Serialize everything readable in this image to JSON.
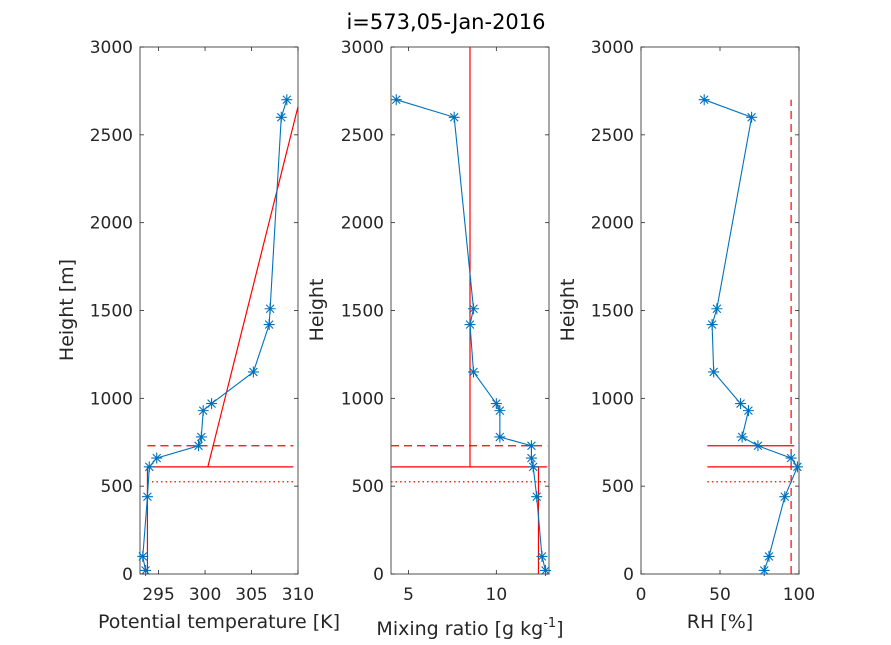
{
  "title": "i=573,05-Jan-2016",
  "colors": {
    "profile": "#0072BD",
    "reference": "#FF0000",
    "axis": "#262626"
  },
  "chart_data": [
    {
      "type": "line",
      "id": "theta",
      "xlabel": "Potential temperature [K]",
      "ylabel": "Height [m]",
      "xlim": [
        293,
        310
      ],
      "ylim": [
        0,
        3000
      ],
      "xticks": [
        295,
        300,
        305,
        310
      ],
      "yticks": [
        0,
        500,
        1000,
        1500,
        2000,
        2500,
        3000
      ],
      "series": [
        {
          "style": "line-star",
          "x": [
            293.6,
            293.3,
            293.8,
            294.0,
            294.8,
            299.3,
            299.6,
            299.8,
            300.7,
            305.2,
            306.9,
            307.0,
            308.2,
            308.8
          ],
          "y": [
            20,
            100,
            440,
            610,
            660,
            730,
            780,
            930,
            970,
            1150,
            1420,
            1510,
            2600,
            2700
          ]
        },
        {
          "style": "line-red",
          "x": [
            300.3,
            310
          ],
          "y": [
            610,
            2660
          ]
        },
        {
          "style": "hline-solid",
          "y": 610,
          "xrange": [
            293.8,
            309.5
          ]
        },
        {
          "style": "hline-dashed",
          "y": 730,
          "xrange": [
            293.8,
            309.5
          ]
        },
        {
          "style": "hline-dotted",
          "y": 525,
          "xrange": [
            293.8,
            309.5
          ]
        },
        {
          "style": "vline-solid",
          "x": 293.8,
          "yrange": [
            0,
            610
          ]
        }
      ]
    },
    {
      "type": "line",
      "id": "mixing",
      "xlabel": "Mixing ratio [g kg",
      "xlabel_sup": "-1",
      "xlabel_end": "]",
      "ylabel": "Height",
      "xlim": [
        4,
        13
      ],
      "ylim": [
        0,
        3000
      ],
      "xticks": [
        5,
        10
      ],
      "yticks": [
        0,
        500,
        1000,
        1500,
        2000,
        2500,
        3000
      ],
      "series": [
        {
          "style": "line-star",
          "x": [
            12.8,
            12.6,
            12.3,
            12.1,
            12.0,
            12.0,
            10.2,
            10.2,
            10.0,
            8.7,
            8.5,
            8.7,
            7.6,
            4.3
          ],
          "y": [
            20,
            100,
            440,
            610,
            660,
            730,
            780,
            930,
            970,
            1150,
            1420,
            1510,
            2600,
            2700
          ]
        },
        {
          "style": "vline-solid",
          "x": 8.5,
          "yrange": [
            610,
            3000
          ]
        },
        {
          "style": "vline-solid",
          "x": 12.4,
          "yrange": [
            0,
            610
          ]
        },
        {
          "style": "hline-solid",
          "y": 610,
          "xrange": [
            4,
            12.9
          ]
        },
        {
          "style": "hline-dashed",
          "y": 730,
          "xrange": [
            4,
            12.9
          ]
        },
        {
          "style": "hline-dotted",
          "y": 525,
          "xrange": [
            4,
            12.9
          ]
        }
      ]
    },
    {
      "type": "line",
      "id": "rh",
      "xlabel": "RH [%]",
      "ylabel": "Height",
      "xlim": [
        0,
        100
      ],
      "ylim": [
        0,
        3000
      ],
      "xticks": [
        0,
        50,
        100
      ],
      "yticks": [
        0,
        500,
        1000,
        1500,
        2000,
        2500,
        3000
      ],
      "series": [
        {
          "style": "line-star",
          "x": [
            78,
            81,
            91,
            99,
            95,
            74,
            64,
            68,
            63,
            46,
            45,
            48,
            70,
            40
          ],
          "y": [
            20,
            100,
            440,
            610,
            660,
            730,
            780,
            930,
            970,
            1150,
            1420,
            1510,
            2600,
            2700
          ]
        },
        {
          "style": "vline-dashed",
          "x": 95,
          "yrange": [
            0,
            2700
          ]
        },
        {
          "style": "hline-solid",
          "y": 610,
          "xrange": [
            42,
            97
          ]
        },
        {
          "style": "hline-solid",
          "y": 730,
          "xrange": [
            42,
            97
          ]
        },
        {
          "style": "hline-dotted",
          "y": 525,
          "xrange": [
            42,
            97
          ]
        }
      ]
    }
  ]
}
